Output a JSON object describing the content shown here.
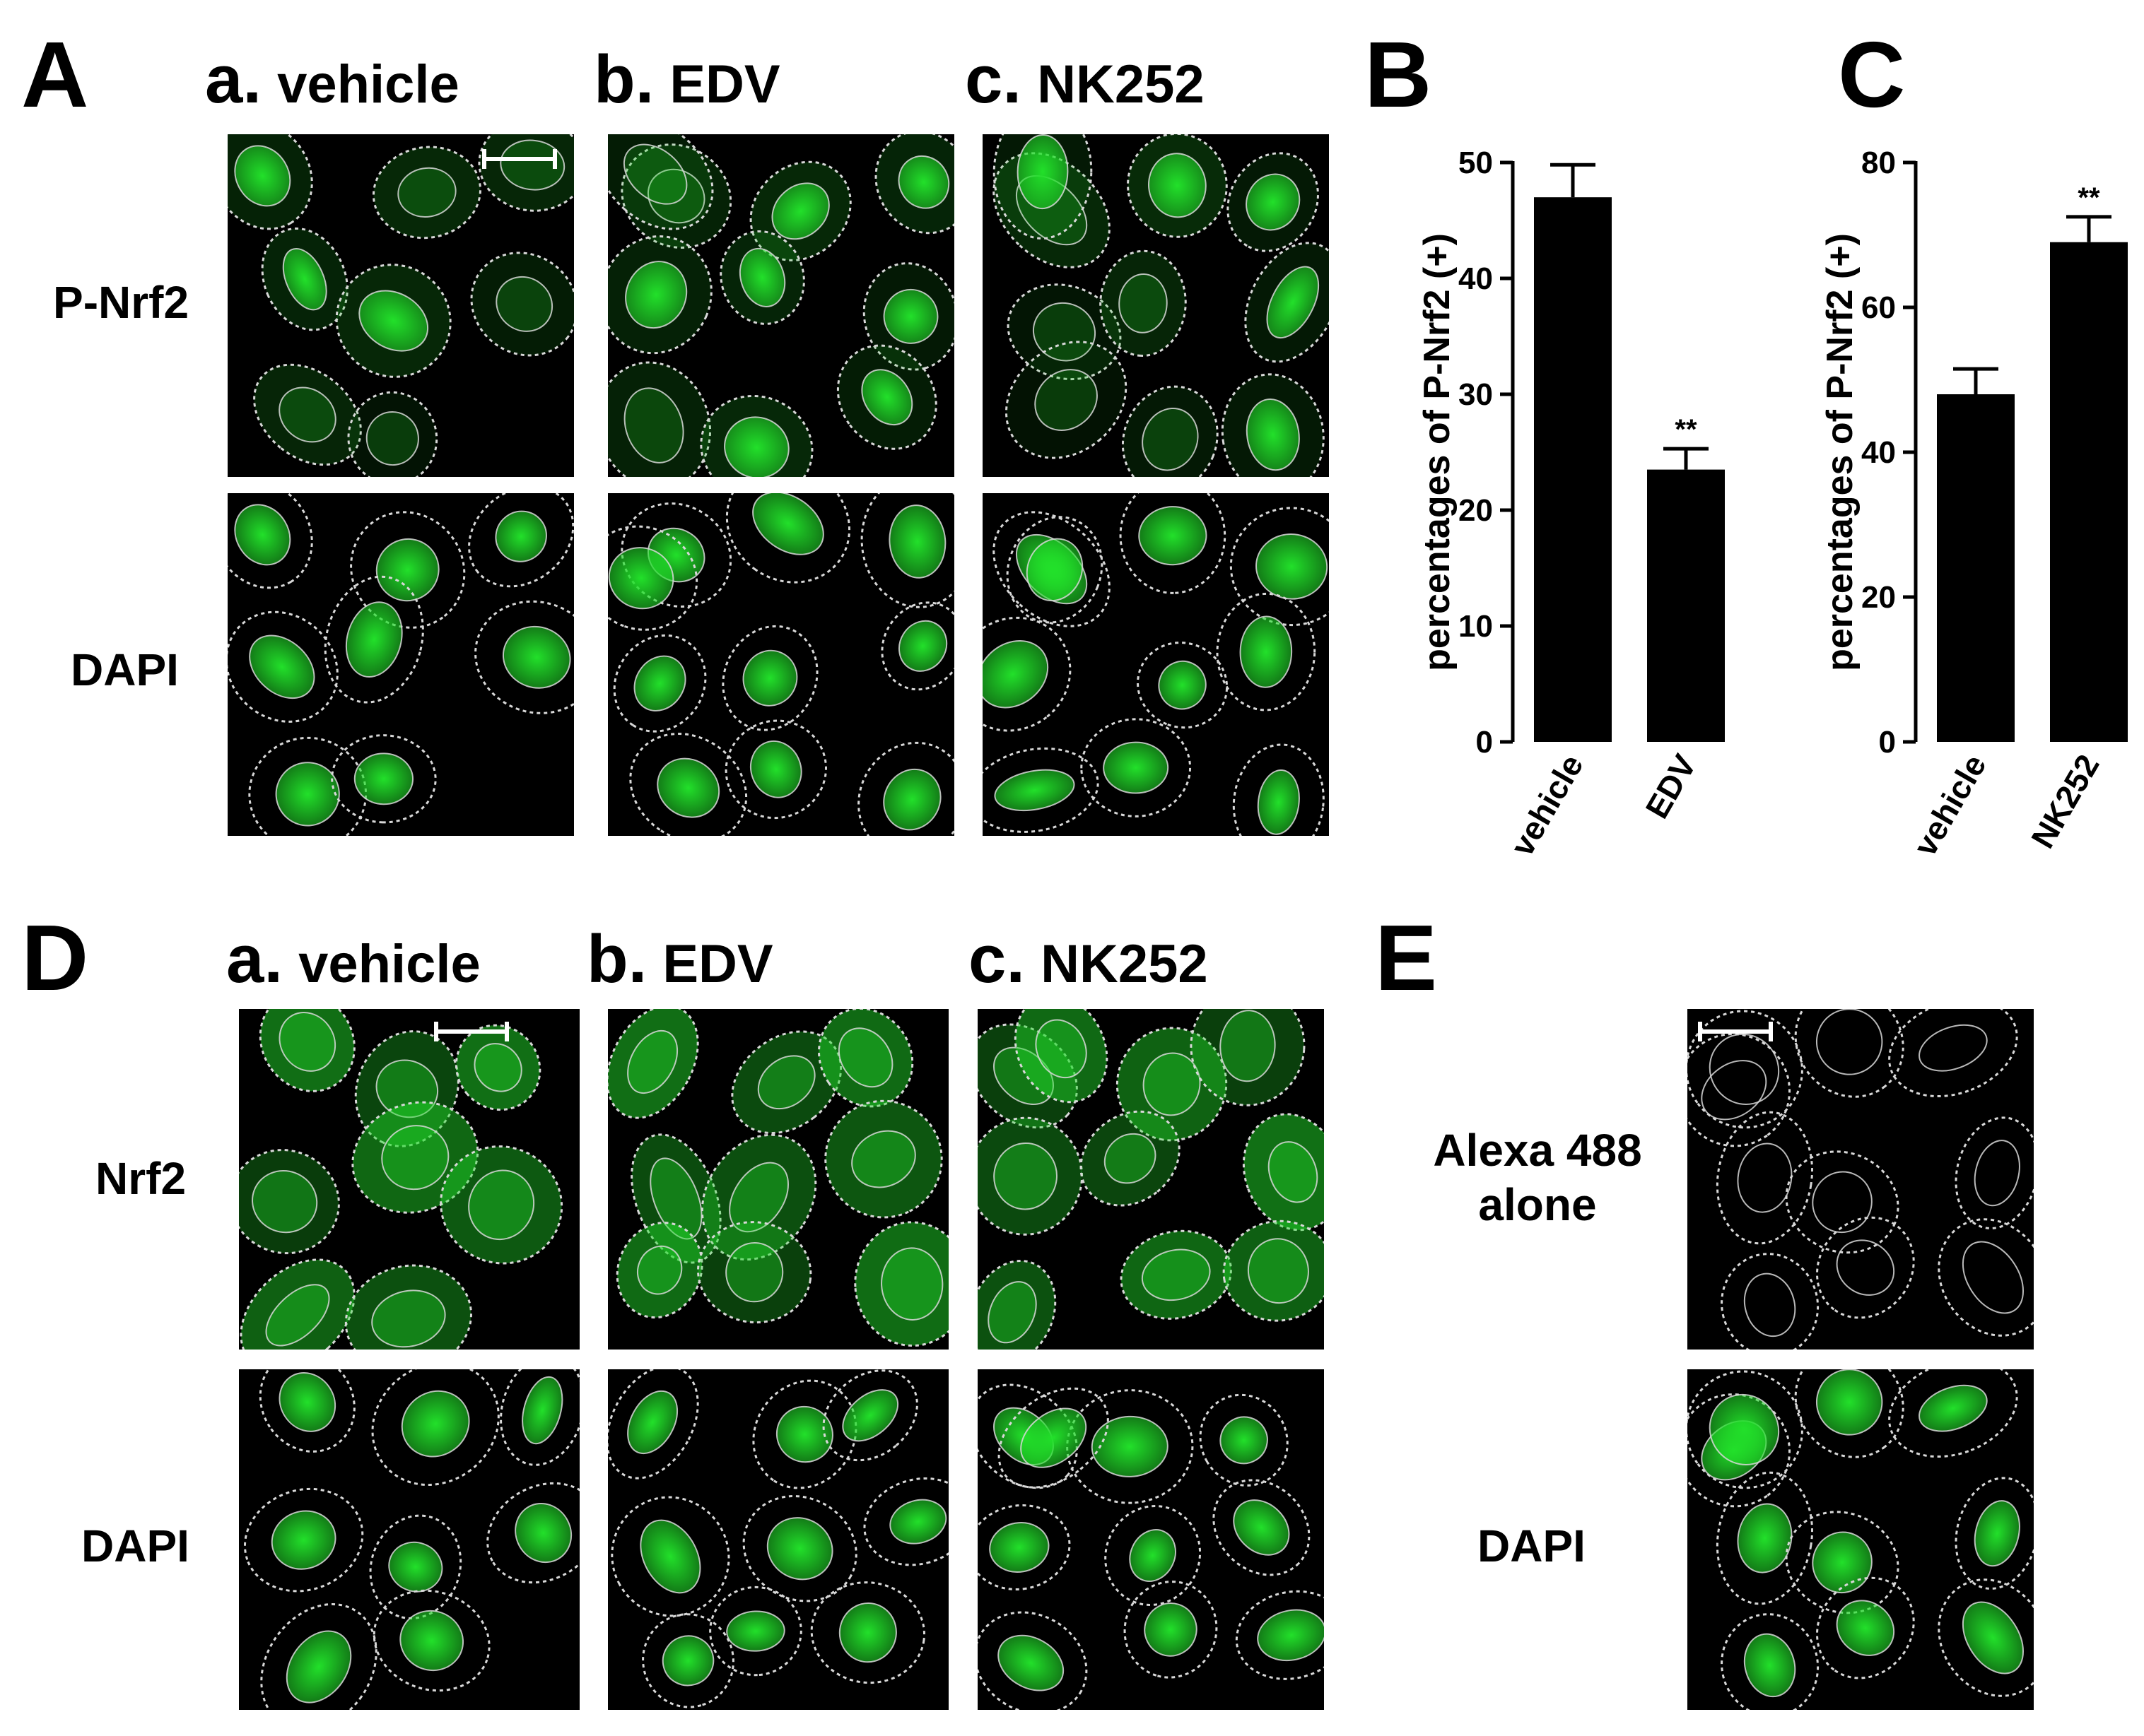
{
  "panels": {
    "A": {
      "letter": "A",
      "columns": [
        {
          "letter": "a.",
          "label": "vehicle"
        },
        {
          "letter": "b.",
          "label": "EDV"
        },
        {
          "letter": "c.",
          "label": "NK252"
        }
      ],
      "rows": [
        "P-Nrf2",
        "DAPI"
      ]
    },
    "B": {
      "letter": "B"
    },
    "C": {
      "letter": "C"
    },
    "D": {
      "letter": "D",
      "columns": [
        {
          "letter": "a.",
          "label": "vehicle"
        },
        {
          "letter": "b.",
          "label": "EDV"
        },
        {
          "letter": "c.",
          "label": "NK252"
        }
      ],
      "rows": [
        "Nrf2",
        "DAPI"
      ]
    },
    "E": {
      "letter": "E",
      "rows": [
        "Alexa 488\nalone",
        "DAPI"
      ]
    }
  },
  "colors": {
    "green_channel": "#22e02a",
    "blue_channel": "#1a22e6",
    "outline": "#d8d8d8",
    "bar": "#000000"
  },
  "chart_data": [
    {
      "type": "bar",
      "panel": "B",
      "categories": [
        "vehicle",
        "EDV"
      ],
      "values": [
        47,
        23.5
      ],
      "error": [
        2.8,
        1.8
      ],
      "significance": [
        "",
        "**"
      ],
      "ylabel": "percentages of P-Nrf2 (+)",
      "ylim": [
        0,
        50
      ],
      "yticks": [
        0,
        10,
        20,
        30,
        40,
        50
      ]
    },
    {
      "type": "bar",
      "panel": "C",
      "categories": [
        "vehicle",
        "NK252"
      ],
      "values": [
        48,
        69
      ],
      "error": [
        3.5,
        3.5
      ],
      "significance": [
        "",
        "**"
      ],
      "ylabel": "percentages of P-Nrf2 (+)",
      "ylim": [
        0,
        80
      ],
      "yticks": [
        0,
        20,
        40,
        60,
        80
      ]
    }
  ]
}
